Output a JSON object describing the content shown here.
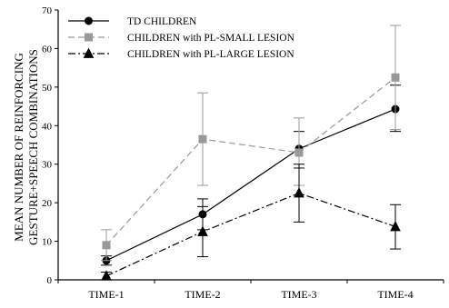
{
  "chart_data": {
    "type": "line",
    "title": "",
    "ylabel_lines": [
      "MEAN NUMBER OF REINFORCING",
      "GESTURE+SPEECH COMBINATIONS"
    ],
    "xlabel": "",
    "categories": [
      "TIME-1",
      "TIME-2",
      "TIME-3",
      "TIME-4"
    ],
    "ylim": [
      0,
      70
    ],
    "yticks": [
      0,
      10,
      20,
      30,
      40,
      50,
      60,
      70
    ],
    "grid": false,
    "legend_position": "top-left",
    "series": [
      {
        "name": "TD CHILDREN",
        "values": [
          5,
          17,
          34,
          44.3
        ],
        "error_low": [
          3.8,
          13,
          29,
          38.5
        ],
        "error_high": [
          6.2,
          21,
          38.5,
          50.5
        ],
        "color": "#000000",
        "line_style": "solid",
        "marker": "circle"
      },
      {
        "name": "CHILDREN with PL-SMALL LESION",
        "values": [
          9,
          36.5,
          33,
          52.5
        ],
        "error_low": [
          5,
          24.5,
          24.5,
          39
        ],
        "error_high": [
          13,
          48.5,
          42,
          66
        ],
        "color": "#999999",
        "line_style": "dashed",
        "marker": "square"
      },
      {
        "name": "CHILDREN with PL-LARGE LESION",
        "values": [
          1,
          12.5,
          22.5,
          13.8
        ],
        "error_low": [
          0,
          6,
          15,
          8
        ],
        "error_high": [
          2,
          19,
          30,
          19.5
        ],
        "color": "#000000",
        "line_style": "dashdot",
        "marker": "triangle"
      }
    ]
  }
}
